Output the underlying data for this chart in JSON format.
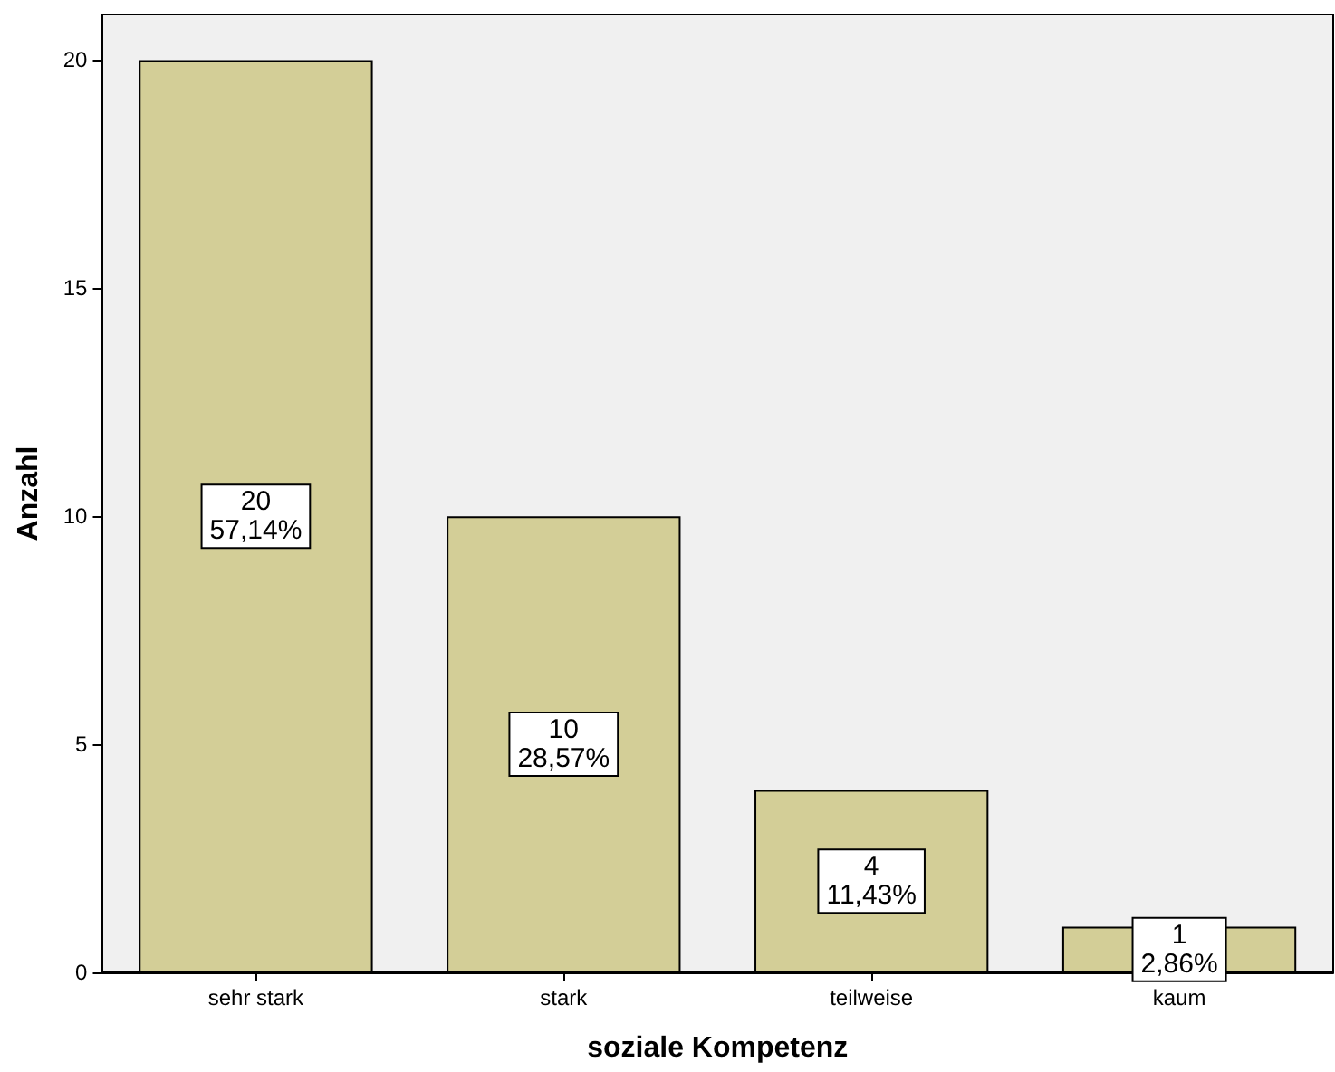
{
  "chart_data": {
    "type": "bar",
    "xlabel": "soziale Kompetenz",
    "ylabel": "Anzahl",
    "categories": [
      "sehr stark",
      "stark",
      "teilweise",
      "kaum"
    ],
    "values": [
      20,
      10,
      4,
      1
    ],
    "value_labels": [
      "20\n57,14%",
      "10\n28,57%",
      "4\n11,43%",
      "1\n2,86%"
    ],
    "color": "#d3ce97",
    "ylim": [
      0,
      21
    ],
    "yticks": [
      0,
      5,
      10,
      15,
      20
    ],
    "grid": false
  }
}
